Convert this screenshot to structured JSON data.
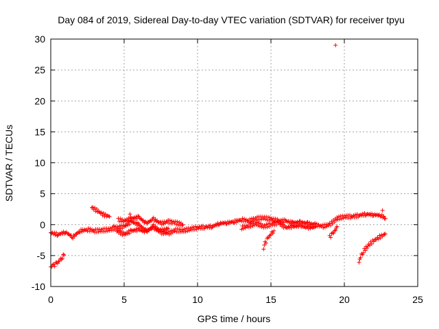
{
  "chart_data": {
    "type": "scatter",
    "title": "Day 084 of 2019, Sidereal Day-to-day VTEC variation (SDTVAR) for receiver tpyu",
    "xlabel": "GPS time / hours",
    "ylabel": "SDTVAR / TECUs",
    "xlim": [
      0,
      25
    ],
    "ylim": [
      -10,
      30
    ],
    "xticks": [
      "0",
      "5",
      "10",
      "15",
      "20",
      "25"
    ],
    "yticks": [
      "-10",
      "-5",
      "0",
      "5",
      "10",
      "15",
      "20",
      "25",
      "30"
    ],
    "grid": true,
    "marker": "+",
    "color": "#ff0000",
    "segments": [
      {
        "name": "main-band",
        "points": [
          [
            0,
            -1.3
          ],
          [
            0.5,
            -1.6
          ],
          [
            1,
            -1.2
          ],
          [
            1.5,
            -2.0
          ],
          [
            2,
            -1.0
          ],
          [
            2.5,
            -0.8
          ],
          [
            3,
            -1.0
          ],
          [
            3.5,
            -0.9
          ],
          [
            4,
            -0.8
          ],
          [
            4.5,
            -0.5
          ],
          [
            5,
            -0.3
          ],
          [
            5.5,
            0.5
          ],
          [
            6,
            0.0
          ],
          [
            6.5,
            -1.0
          ],
          [
            7,
            -0.5
          ],
          [
            7.5,
            -1.3
          ],
          [
            8,
            -1.4
          ],
          [
            8.5,
            -0.9
          ],
          [
            9,
            -1.0
          ],
          [
            9.5,
            -0.7
          ],
          [
            10,
            -0.5
          ],
          [
            10.5,
            -0.4
          ],
          [
            11,
            -0.3
          ],
          [
            11.5,
            0.2
          ],
          [
            12,
            0.3
          ],
          [
            12.5,
            0.5
          ],
          [
            13,
            0.8
          ],
          [
            13.5,
            0.6
          ],
          [
            14,
            1.0
          ],
          [
            14.5,
            1.1
          ],
          [
            15,
            0.9
          ],
          [
            15.5,
            0.6
          ],
          [
            16,
            0.6
          ],
          [
            16.5,
            0.3
          ],
          [
            17,
            0.4
          ],
          [
            17.5,
            0.2
          ],
          [
            18,
            0.0
          ],
          [
            18.5,
            -0.3
          ],
          [
            19,
            0.0
          ],
          [
            19.5,
            1.0
          ],
          [
            20,
            1.3
          ],
          [
            20.5,
            1.3
          ],
          [
            21,
            1.5
          ],
          [
            21.5,
            1.7
          ],
          [
            22,
            1.6
          ],
          [
            22.5,
            1.5
          ],
          [
            22.8,
            1.0
          ]
        ]
      },
      {
        "name": "upper-band",
        "points": [
          [
            4.6,
            0.8
          ],
          [
            5,
            0.6
          ],
          [
            5.5,
            1.0
          ],
          [
            6,
            1.2
          ],
          [
            6.5,
            0.2
          ],
          [
            7,
            0.9
          ],
          [
            7.5,
            0.2
          ],
          [
            8,
            0.5
          ],
          [
            8.5,
            0.3
          ],
          [
            9,
            0.0
          ]
        ]
      },
      {
        "name": "lower-band",
        "points": [
          [
            4.5,
            -1.0
          ],
          [
            5,
            -1.6
          ],
          [
            5.5,
            -1.0
          ],
          [
            6,
            -0.8
          ],
          [
            6.5,
            -1.2
          ],
          [
            7,
            -0.2
          ],
          [
            7.5,
            -1.0
          ],
          [
            8,
            -0.6
          ]
        ]
      },
      {
        "name": "mid-band",
        "points": [
          [
            13,
            -0.5
          ],
          [
            13.5,
            -0.2
          ],
          [
            14,
            0.2
          ],
          [
            14.5,
            -0.3
          ],
          [
            15,
            0.0
          ],
          [
            15.5,
            0.3
          ],
          [
            16,
            -0.5
          ],
          [
            16.5,
            -0.3
          ],
          [
            17,
            -0.2
          ],
          [
            17.5,
            -0.5
          ],
          [
            18,
            -0.4
          ]
        ]
      },
      {
        "name": "early-dip",
        "points": [
          [
            0,
            -6.8
          ],
          [
            0.2,
            -6.6
          ],
          [
            0.4,
            -6.3
          ],
          [
            0.6,
            -5.8
          ],
          [
            0.8,
            -5.2
          ],
          [
            0.9,
            -4.9
          ]
        ]
      },
      {
        "name": "rise-3h",
        "points": [
          [
            2.8,
            2.8
          ],
          [
            3.2,
            2.2
          ],
          [
            3.6,
            1.6
          ],
          [
            4,
            1.3
          ]
        ]
      },
      {
        "name": "dip-14h",
        "points": [
          [
            14.5,
            -3.8
          ],
          [
            14.6,
            -3.0
          ],
          [
            14.8,
            -2.2
          ],
          [
            15,
            -1.5
          ],
          [
            15.2,
            -1.0
          ]
        ]
      },
      {
        "name": "dip-19h",
        "points": [
          [
            19,
            -2.0
          ],
          [
            19.2,
            -1.5
          ],
          [
            19.4,
            -0.8
          ],
          [
            19.5,
            -0.3
          ]
        ]
      },
      {
        "name": "late-curve",
        "points": [
          [
            21,
            -6.1
          ],
          [
            21.1,
            -5.2
          ],
          [
            21.3,
            -4.3
          ],
          [
            21.6,
            -3.4
          ],
          [
            22,
            -2.6
          ],
          [
            22.4,
            -2.0
          ],
          [
            22.8,
            -1.5
          ]
        ]
      },
      {
        "name": "outliers",
        "points": [
          [
            19.4,
            29.0
          ],
          [
            5.4,
            1.7
          ],
          [
            4.3,
            -0.2
          ],
          [
            22.6,
            2.3
          ]
        ]
      }
    ]
  }
}
